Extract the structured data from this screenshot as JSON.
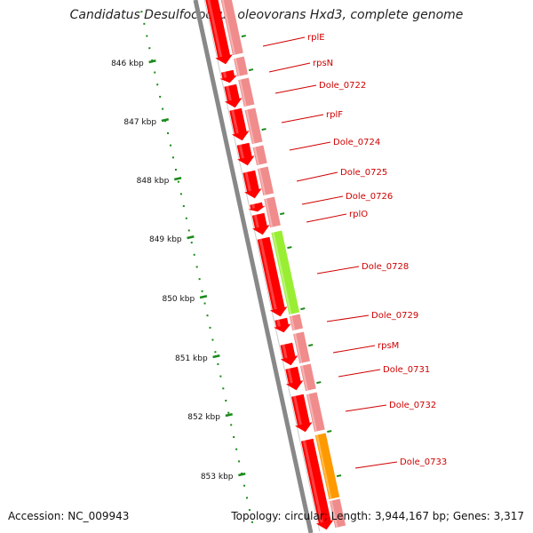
{
  "header": {
    "title": "Candidatus Desulfococcus oleovorans Hxd3, complete genome"
  },
  "footer": {
    "accession": "Accession: NC_009943",
    "summary": "Topology: circular; Length: 3,944,167 bp; Genes: 3,317"
  },
  "colors": {
    "cds": "#ff0000",
    "cds_light": "#f08c8c",
    "feature_green": "#99ee33",
    "feature_orange": "#ff9900",
    "backbone": "#888888",
    "ticks": "#1a8a1a",
    "label": "#d00000"
  },
  "ruler": [
    {
      "label": "846 kbp",
      "position_kbp": 846
    },
    {
      "label": "847 kbp",
      "position_kbp": 847
    },
    {
      "label": "848 kbp",
      "position_kbp": 848
    },
    {
      "label": "849 kbp",
      "position_kbp": 849
    },
    {
      "label": "850 kbp",
      "position_kbp": 850
    },
    {
      "label": "851 kbp",
      "position_kbp": 851
    },
    {
      "label": "852 kbp",
      "position_kbp": 852
    },
    {
      "label": "853 kbp",
      "position_kbp": 853
    }
  ],
  "genes": [
    {
      "name": "rplE"
    },
    {
      "name": "rpsN"
    },
    {
      "name": "Dole_0722"
    },
    {
      "name": "rplF"
    },
    {
      "name": "Dole_0724"
    },
    {
      "name": "Dole_0725"
    },
    {
      "name": "Dole_0726"
    },
    {
      "name": "rplO"
    },
    {
      "name": "Dole_0728"
    },
    {
      "name": "Dole_0729"
    },
    {
      "name": "rpsM"
    },
    {
      "name": "Dole_0731"
    },
    {
      "name": "Dole_0732"
    },
    {
      "name": "Dole_0733"
    }
  ]
}
